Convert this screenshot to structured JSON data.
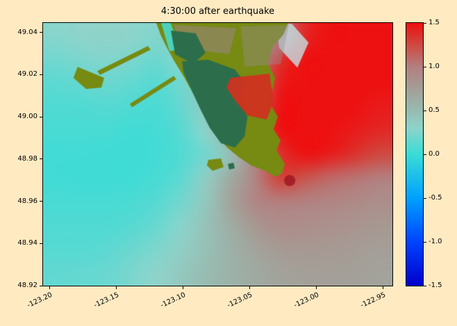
{
  "figure": {
    "title": "4:30:00 after earthquake",
    "background": "#ffeac2"
  },
  "axes": {
    "x": {
      "range": [
        -123.205,
        -122.943
      ],
      "ticks": [
        -123.2,
        -123.15,
        -123.1,
        -123.05,
        -123.0,
        -122.95
      ],
      "tick_labels": [
        "-123.20",
        "-123.15",
        "-123.10",
        "-123.05",
        "-123.00",
        "-122.95"
      ]
    },
    "y": {
      "range": [
        48.92,
        49.0445
      ],
      "ticks": [
        49.04,
        49.02,
        49.0,
        48.98,
        48.96,
        48.94,
        48.92
      ],
      "tick_labels": [
        "49.04",
        "49.02",
        "49.00",
        "48.98",
        "48.96",
        "48.94",
        "48.92"
      ]
    }
  },
  "colorbar": {
    "range": [
      -1.5,
      1.5
    ],
    "ticks": [
      1.5,
      1.0,
      0.5,
      0.0,
      -0.5,
      -1.0,
      -1.5
    ],
    "tick_labels": [
      "1.5",
      "1.0",
      "0.5",
      "0.0",
      "-0.5",
      "-1.0",
      "-1.5"
    ]
  },
  "chart_data": {
    "type": "heatmap",
    "title": "4:30:00 after earthquake",
    "xlabel": "",
    "ylabel": "",
    "x_range": [
      -123.205,
      -122.943
    ],
    "y_range": [
      48.92,
      49.0445
    ],
    "value_range": [
      -1.5,
      1.5
    ],
    "grid_note": "Sea-surface elevation field sampled on a coarse grid, row-major from north (top) to south (bottom), west (left) to east (right); values in same units as colorbar.",
    "colormap_stops": [
      {
        "value": -1.5,
        "color": "#0000cc"
      },
      {
        "value": -1.0,
        "color": "#0044ff"
      },
      {
        "value": -0.5,
        "color": "#00a2ff"
      },
      {
        "value": 0.0,
        "color": "#3adcd6"
      },
      {
        "value": 0.3,
        "color": "#8ed4cb"
      },
      {
        "value": 0.5,
        "color": "#98bcb1"
      },
      {
        "value": 0.75,
        "color": "#a49e97"
      },
      {
        "value": 1.0,
        "color": "#b38080"
      },
      {
        "value": 1.25,
        "color": "#cf4a42"
      },
      {
        "value": 1.5,
        "color": "#ee1111"
      }
    ],
    "grid_values": [
      [
        0.28,
        0.3,
        0.32,
        0.3,
        0.26,
        0.4,
        0.55,
        0.6,
        0.7,
        1.0,
        1.4,
        1.5,
        1.5,
        1.5
      ],
      [
        0.2,
        0.24,
        0.26,
        0.24,
        0.18,
        0.28,
        0.5,
        0.75,
        0.9,
        1.35,
        1.5,
        1.5,
        1.5,
        1.5
      ],
      [
        0.12,
        0.15,
        0.18,
        0.15,
        0.1,
        0.2,
        0.45,
        0.9,
        1.0,
        1.45,
        1.5,
        1.5,
        1.5,
        1.5
      ],
      [
        0.08,
        0.08,
        0.1,
        0.08,
        0.06,
        0.15,
        0.4,
        0.85,
        1.1,
        1.5,
        1.5,
        1.5,
        1.5,
        1.45
      ],
      [
        0.05,
        0.05,
        0.05,
        0.03,
        0.04,
        0.1,
        0.3,
        0.7,
        1.2,
        1.5,
        1.5,
        1.5,
        1.45,
        1.4
      ],
      [
        0.03,
        0.03,
        0.02,
        0.02,
        0.03,
        0.08,
        0.2,
        0.45,
        1.0,
        1.35,
        1.5,
        1.45,
        1.35,
        1.25
      ],
      [
        0.03,
        0.02,
        0.02,
        0.02,
        0.05,
        0.12,
        0.35,
        0.65,
        0.95,
        1.3,
        1.2,
        1.1,
        1.05,
        1.0
      ],
      [
        0.05,
        0.05,
        0.05,
        0.06,
        0.1,
        0.2,
        0.4,
        0.7,
        0.95,
        1.0,
        0.98,
        0.95,
        0.92,
        0.88
      ],
      [
        0.08,
        0.08,
        0.08,
        0.1,
        0.16,
        0.28,
        0.45,
        0.62,
        0.8,
        0.9,
        0.88,
        0.86,
        0.83,
        0.8
      ],
      [
        0.1,
        0.1,
        0.12,
        0.18,
        0.24,
        0.34,
        0.46,
        0.58,
        0.7,
        0.78,
        0.8,
        0.79,
        0.77,
        0.74
      ],
      [
        0.14,
        0.15,
        0.17,
        0.23,
        0.3,
        0.4,
        0.5,
        0.58,
        0.65,
        0.71,
        0.73,
        0.74,
        0.73,
        0.71
      ]
    ],
    "land_overlays": [
      {
        "type": "polygon",
        "name": "shallow-pale-band",
        "color": "#c2ecf2",
        "alpha": 0.75,
        "points": [
          [
            0.668,
            0.008
          ],
          [
            0.712,
            0.003
          ],
          [
            0.76,
            0.075
          ],
          [
            0.728,
            0.17
          ],
          [
            0.676,
            0.095
          ]
        ]
      },
      {
        "type": "polygon",
        "name": "main-landmass-olive",
        "color": "#778a12",
        "alpha": 1,
        "points": [
          [
            0.324,
            0.0
          ],
          [
            0.702,
            0.0
          ],
          [
            0.688,
            0.045
          ],
          [
            0.656,
            0.093
          ],
          [
            0.644,
            0.156
          ],
          [
            0.664,
            0.209
          ],
          [
            0.648,
            0.304
          ],
          [
            0.672,
            0.357
          ],
          [
            0.66,
            0.405
          ],
          [
            0.68,
            0.447
          ],
          [
            0.668,
            0.484
          ],
          [
            0.692,
            0.537
          ],
          [
            0.684,
            0.574
          ],
          [
            0.664,
            0.585
          ],
          [
            0.636,
            0.563
          ],
          [
            0.596,
            0.542
          ],
          [
            0.561,
            0.511
          ],
          [
            0.527,
            0.474
          ],
          [
            0.499,
            0.431
          ],
          [
            0.471,
            0.373
          ],
          [
            0.447,
            0.315
          ],
          [
            0.425,
            0.257
          ],
          [
            0.4,
            0.198
          ],
          [
            0.376,
            0.146
          ],
          [
            0.356,
            0.098
          ],
          [
            0.338,
            0.05
          ]
        ]
      },
      {
        "type": "polygon",
        "name": "river-channel-cyan",
        "color": "#49d8cc",
        "alpha": 0.9,
        "points": [
          [
            0.338,
            0.0
          ],
          [
            0.365,
            0.0
          ],
          [
            0.392,
            0.1
          ],
          [
            0.362,
            0.108
          ]
        ]
      },
      {
        "type": "polygon",
        "name": "urban-speckle-west",
        "color": "#a583a0",
        "alpha": 0.45,
        "points": [
          [
            0.374,
            0.008
          ],
          [
            0.553,
            0.019
          ],
          [
            0.533,
            0.119
          ],
          [
            0.398,
            0.098
          ]
        ]
      },
      {
        "type": "polygon",
        "name": "urban-speckle-east",
        "color": "#9c8c94",
        "alpha": 0.4,
        "points": [
          [
            0.565,
            0.013
          ],
          [
            0.704,
            0.008
          ],
          [
            0.68,
            0.156
          ],
          [
            0.577,
            0.167
          ]
        ]
      },
      {
        "type": "polygon",
        "name": "interior-darkgreen-upper",
        "color": "#2c6e4b",
        "alpha": 1,
        "points": [
          [
            0.366,
            0.029
          ],
          [
            0.437,
            0.04
          ],
          [
            0.465,
            0.114
          ],
          [
            0.429,
            0.156
          ],
          [
            0.378,
            0.119
          ]
        ]
      },
      {
        "type": "polygon",
        "name": "interior-darkgreen-main",
        "color": "#2c6e4b",
        "alpha": 1,
        "points": [
          [
            0.398,
            0.146
          ],
          [
            0.473,
            0.14
          ],
          [
            0.549,
            0.177
          ],
          [
            0.577,
            0.225
          ],
          [
            0.565,
            0.288
          ],
          [
            0.585,
            0.357
          ],
          [
            0.577,
            0.431
          ],
          [
            0.549,
            0.474
          ],
          [
            0.509,
            0.458
          ],
          [
            0.477,
            0.399
          ],
          [
            0.449,
            0.325
          ],
          [
            0.422,
            0.246
          ],
          [
            0.402,
            0.188
          ]
        ]
      },
      {
        "type": "polygon",
        "name": "flooded-red-patch",
        "color": "#cf3320",
        "alpha": 0.95,
        "points": [
          [
            0.537,
            0.209
          ],
          [
            0.648,
            0.193
          ],
          [
            0.66,
            0.299
          ],
          [
            0.64,
            0.368
          ],
          [
            0.585,
            0.352
          ],
          [
            0.549,
            0.294
          ],
          [
            0.525,
            0.246
          ]
        ]
      },
      {
        "type": "polygon",
        "name": "terminal-blob-olive",
        "color": "#778a12",
        "alpha": 1,
        "points": [
          [
            0.099,
            0.167
          ],
          [
            0.175,
            0.209
          ],
          [
            0.167,
            0.246
          ],
          [
            0.123,
            0.251
          ],
          [
            0.087,
            0.209
          ]
        ]
      },
      {
        "type": "polygon",
        "name": "causeway-upper",
        "color": "#778a12",
        "alpha": 1,
        "points": [
          [
            0.155,
            0.183
          ],
          [
            0.3,
            0.088
          ],
          [
            0.308,
            0.102
          ],
          [
            0.163,
            0.198
          ]
        ]
      },
      {
        "type": "polygon",
        "name": "causeway-lower",
        "color": "#778a12",
        "alpha": 1,
        "points": [
          [
            0.248,
            0.308
          ],
          [
            0.374,
            0.202
          ],
          [
            0.381,
            0.214
          ],
          [
            0.255,
            0.321
          ]
        ]
      },
      {
        "type": "polygon",
        "name": "small-island-olive",
        "color": "#778a12",
        "alpha": 1,
        "points": [
          [
            0.473,
            0.521
          ],
          [
            0.509,
            0.516
          ],
          [
            0.517,
            0.548
          ],
          [
            0.485,
            0.563
          ],
          [
            0.469,
            0.542
          ]
        ]
      },
      {
        "type": "polygon",
        "name": "small-island-darkgreen",
        "color": "#2c6e4b",
        "alpha": 1,
        "points": [
          [
            0.529,
            0.537
          ],
          [
            0.545,
            0.532
          ],
          [
            0.549,
            0.553
          ],
          [
            0.533,
            0.558
          ]
        ]
      },
      {
        "type": "circle",
        "name": "tip-crimson-spot",
        "color": "#a01822",
        "alpha": 0.85,
        "center": [
          0.706,
          0.6
        ],
        "r": 0.016
      }
    ]
  }
}
